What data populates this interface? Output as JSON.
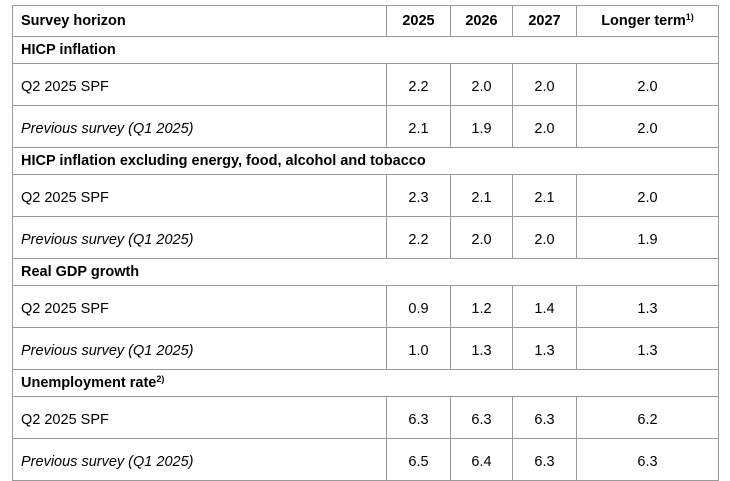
{
  "table": {
    "header": {
      "label": "Survey horizon",
      "cols": [
        "2025",
        "2026",
        "2027",
        "Longer term"
      ],
      "longer_term_note": "1)"
    },
    "sections": [
      {
        "title": "HICP inflation",
        "note": "",
        "rows": [
          {
            "label": "Q2 2025 SPF",
            "values": [
              "2.2",
              "2.0",
              "2.0",
              "2.0"
            ]
          },
          {
            "label": "Previous survey (Q1 2025)",
            "values": [
              "2.1",
              "1.9",
              "2.0",
              "2.0"
            ]
          }
        ]
      },
      {
        "title": "HICP inflation excluding energy, food, alcohol and tobacco",
        "note": "",
        "rows": [
          {
            "label": "Q2 2025 SPF",
            "values": [
              "2.3",
              "2.1",
              "2.1",
              "2.0"
            ]
          },
          {
            "label": "Previous survey (Q1 2025)",
            "values": [
              "2.2",
              "2.0",
              "2.0",
              "1.9"
            ]
          }
        ]
      },
      {
        "title": "Real GDP growth",
        "note": "",
        "rows": [
          {
            "label": "Q2 2025 SPF",
            "values": [
              "0.9",
              "1.2",
              "1.4",
              "1.3"
            ]
          },
          {
            "label": "Previous survey (Q1 2025)",
            "values": [
              "1.0",
              "1.3",
              "1.3",
              "1.3"
            ]
          }
        ]
      },
      {
        "title": "Unemployment rate",
        "note": "2)",
        "rows": [
          {
            "label": "Q2 2025 SPF",
            "values": [
              "6.3",
              "6.3",
              "6.3",
              "6.2"
            ]
          },
          {
            "label": "Previous survey (Q1 2025)",
            "values": [
              "6.5",
              "6.4",
              "6.3",
              "6.3"
            ]
          }
        ]
      }
    ]
  }
}
